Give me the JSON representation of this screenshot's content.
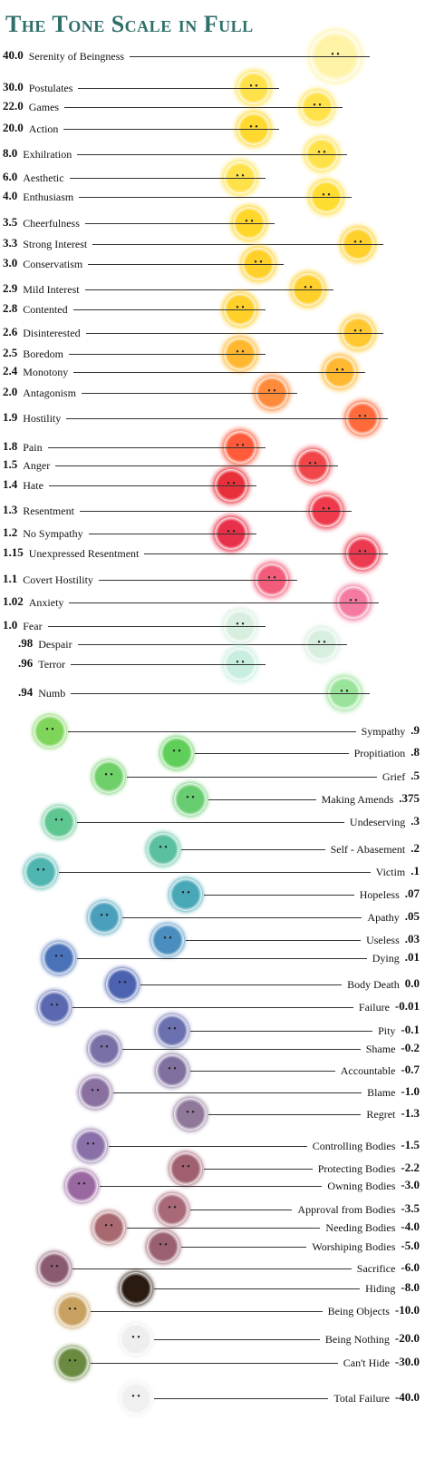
{
  "title": "The Tone Scale in Full",
  "upper_scale": [
    {
      "value": "40.0",
      "label": "Serenity of Beingness",
      "color": "#fff3a8"
    },
    {
      "value": "30.0",
      "label": "Postulates",
      "color": "#ffe24a"
    },
    {
      "value": "22.0",
      "label": "Games",
      "color": "#ffe24a"
    },
    {
      "value": "20.0",
      "label": "Action",
      "color": "#ffd92e"
    },
    {
      "value": "8.0",
      "label": "Exhilration",
      "color": "#ffe24a"
    },
    {
      "value": "6.0",
      "label": "Aesthetic",
      "color": "#ffe24a"
    },
    {
      "value": "4.0",
      "label": "Enthusiasm",
      "color": "#ffdc30"
    },
    {
      "value": "3.5",
      "label": "Cheerfulness",
      "color": "#ffd62a"
    },
    {
      "value": "3.3",
      "label": "Strong Interest",
      "color": "#ffd02a"
    },
    {
      "value": "3.0",
      "label": "Conservatism",
      "color": "#ffd02a"
    },
    {
      "value": "2.9",
      "label": "Mild Interest",
      "color": "#ffcf2a"
    },
    {
      "value": "2.8",
      "label": "Contented",
      "color": "#ffcf2a"
    },
    {
      "value": "2.6",
      "label": "Disinterested",
      "color": "#ffc830"
    },
    {
      "value": "2.5",
      "label": "Boredom",
      "color": "#ffb830"
    },
    {
      "value": "2.4",
      "label": "Monotony",
      "color": "#ffb830"
    },
    {
      "value": "2.0",
      "label": "Antagonism",
      "color": "#ff8a3a"
    },
    {
      "value": "1.9",
      "label": "Hostility",
      "color": "#ff6a3a"
    },
    {
      "value": "1.8",
      "label": "Pain",
      "color": "#ff5a3a"
    },
    {
      "value": "1.5",
      "label": "Anger",
      "color": "#f0464a"
    },
    {
      "value": "1.4",
      "label": "Hate",
      "color": "#e8303a"
    },
    {
      "value": "1.3",
      "label": "Resentment",
      "color": "#ee3a4a"
    },
    {
      "value": "1.2",
      "label": "No Sympathy",
      "color": "#e8304a"
    },
    {
      "value": "1.15",
      "label": "Unexpressed Resentment",
      "color": "#ec3a50"
    },
    {
      "value": "1.1",
      "label": "Covert Hostility",
      "color": "#f25c7a"
    },
    {
      "value": "1.02",
      "label": "Anxiety",
      "color": "#f47aa0"
    },
    {
      "value": "1.0",
      "label": "Fear",
      "color": "#d8efe0"
    },
    {
      "value": ".98",
      "label": "Despair",
      "color": "#d8efe0"
    },
    {
      "value": ".96",
      "label": "Terror",
      "color": "#c8eee0"
    },
    {
      "value": ".94",
      "label": "Numb",
      "color": "#9ae39a"
    }
  ],
  "lower_scale": [
    {
      "value": ".9",
      "label": "Sympathy",
      "color": "#7fd45a"
    },
    {
      "value": ".8",
      "label": "Propitiation",
      "color": "#5fcf5a"
    },
    {
      "value": ".5",
      "label": "Grief",
      "color": "#6fd06a"
    },
    {
      "value": ".375",
      "label": "Making Amends",
      "color": "#68cc70"
    },
    {
      "value": ".3",
      "label": "Undeserving",
      "color": "#5ec690"
    },
    {
      "value": ".2",
      "label": "Self - Abasement",
      "color": "#5ac0a0"
    },
    {
      "value": ".1",
      "label": "Victim",
      "color": "#4fb5b0"
    },
    {
      "value": ".07",
      "label": "Hopeless",
      "color": "#48a8b8"
    },
    {
      "value": ".05",
      "label": "Apathy",
      "color": "#4a9fbc"
    },
    {
      "value": ".03",
      "label": "Useless",
      "color": "#4a8ec0"
    },
    {
      "value": ".01",
      "label": "Dying",
      "color": "#4a72b8"
    },
    {
      "value": "0.0",
      "label": "Body Death",
      "color": "#4a62b0"
    },
    {
      "value": "-0.01",
      "label": "Failure",
      "color": "#5a68b0"
    },
    {
      "value": "-0.1",
      "label": "Pity",
      "color": "#6a70b0"
    },
    {
      "value": "-0.2",
      "label": "Shame",
      "color": "#7a70a8"
    },
    {
      "value": "-0.7",
      "label": "Accountable",
      "color": "#8070a0"
    },
    {
      "value": "-1.0",
      "label": "Blame",
      "color": "#8a70a0"
    },
    {
      "value": "-1.3",
      "label": "Regret",
      "color": "#90789a"
    },
    {
      "value": "-1.5",
      "label": "Controlling Bodies",
      "color": "#8a70a8"
    },
    {
      "value": "-2.2",
      "label": "Protecting Bodies",
      "color": "#a06070"
    },
    {
      "value": "-3.0",
      "label": "Owning Bodies",
      "color": "#9a68a0"
    },
    {
      "value": "-3.5",
      "label": "Approval from Bodies",
      "color": "#a86878"
    },
    {
      "value": "-4.0",
      "label": "Needing Bodies",
      "color": "#a86870"
    },
    {
      "value": "-5.0",
      "label": "Worshiping Bodies",
      "color": "#9a6070"
    },
    {
      "value": "-6.0",
      "label": "Sacrifice",
      "color": "#8a5a70"
    },
    {
      "value": "-8.0",
      "label": "Hiding",
      "color": "#2a1a10"
    },
    {
      "value": "-10.0",
      "label": "Being Objects",
      "color": "#c8a060"
    },
    {
      "value": "-20.0",
      "label": "Being Nothing",
      "color": "#eeeeee"
    },
    {
      "value": "-30.0",
      "label": "Can't Hide",
      "color": "#6a8a40"
    },
    {
      "value": "-40.0",
      "label": "Total Failure",
      "color": "#f0f0f0"
    }
  ]
}
